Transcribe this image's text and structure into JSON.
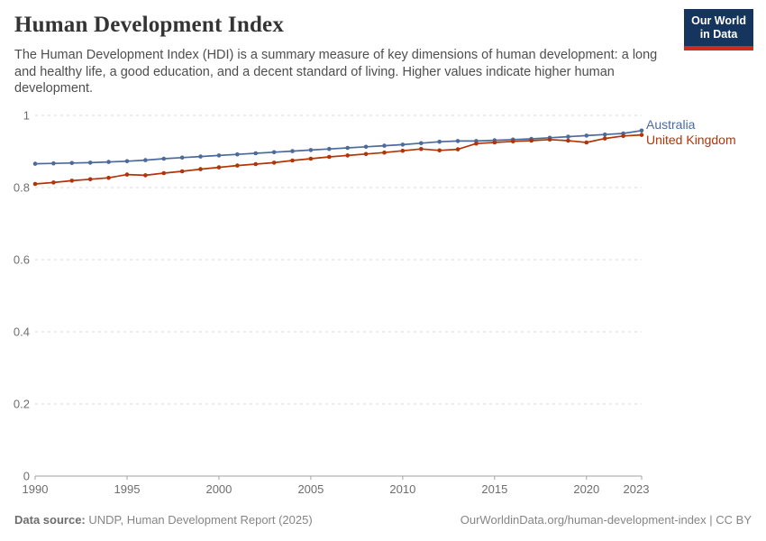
{
  "header": {
    "title": "Human Development Index",
    "subtitle": "The Human Development Index (HDI) is a summary measure of key dimensions of human development: a long and healthy life, a good education, and a decent standard of living. Higher values indicate higher human development.",
    "logo": {
      "line1": "Our World",
      "line2": "in Data"
    }
  },
  "chart_data": {
    "type": "line",
    "title": "Human Development Index",
    "xlabel": "",
    "ylabel": "",
    "x": [
      1990,
      1991,
      1992,
      1993,
      1994,
      1995,
      1996,
      1997,
      1998,
      1999,
      2000,
      2001,
      2002,
      2003,
      2004,
      2005,
      2006,
      2007,
      2008,
      2009,
      2010,
      2011,
      2012,
      2013,
      2014,
      2015,
      2016,
      2017,
      2018,
      2019,
      2020,
      2021,
      2022,
      2023
    ],
    "series": [
      {
        "name": "Australia",
        "color": "#4C6A9C",
        "values": [
          0.866,
          0.867,
          0.868,
          0.869,
          0.871,
          0.873,
          0.876,
          0.88,
          0.883,
          0.886,
          0.889,
          0.892,
          0.895,
          0.898,
          0.901,
          0.904,
          0.907,
          0.91,
          0.913,
          0.916,
          0.919,
          0.923,
          0.927,
          0.929,
          0.929,
          0.931,
          0.933,
          0.935,
          0.938,
          0.941,
          0.944,
          0.947,
          0.95,
          0.958
        ]
      },
      {
        "name": "United Kingdom",
        "color": "#B13507",
        "values": [
          0.81,
          0.814,
          0.819,
          0.823,
          0.827,
          0.836,
          0.834,
          0.84,
          0.845,
          0.851,
          0.856,
          0.861,
          0.865,
          0.869,
          0.875,
          0.88,
          0.885,
          0.889,
          0.893,
          0.897,
          0.902,
          0.907,
          0.903,
          0.906,
          0.922,
          0.925,
          0.928,
          0.93,
          0.933,
          0.93,
          0.925,
          0.936,
          0.943,
          0.946
        ]
      }
    ],
    "ylim": [
      0,
      1
    ],
    "yticks": [
      0,
      0.2,
      0.4,
      0.6,
      0.8,
      1
    ],
    "ytick_labels": [
      "0",
      "0.2",
      "0.4",
      "0.6",
      "0.8",
      "1"
    ],
    "xticks": [
      1990,
      1995,
      2000,
      2005,
      2010,
      2015,
      2020,
      2023
    ],
    "xtick_labels": [
      "1990",
      "1995",
      "2000",
      "2005",
      "2010",
      "2015",
      "2020",
      "2023"
    ],
    "grid": "horizontal-dashed",
    "legend_position": "right-of-line-ends",
    "legend": [
      "Australia",
      "United Kingdom"
    ]
  },
  "footer": {
    "data_source_label": "Data source:",
    "data_source_text": " UNDP, Human Development Report (2025)",
    "attribution": "OurWorldinData.org/human-development-index | CC BY"
  },
  "colors": {
    "australia": "#4C6A9C",
    "united_kingdom": "#B13507",
    "logo_navy": "#16355E",
    "logo_red": "#CA2D1D",
    "grid": "#dadada",
    "axis": "#a3a3a3",
    "tick_label": "#6e6e6e",
    "title_text": "#343434",
    "subtitle_text": "#4e4e4e",
    "footer_text": "#858585"
  }
}
